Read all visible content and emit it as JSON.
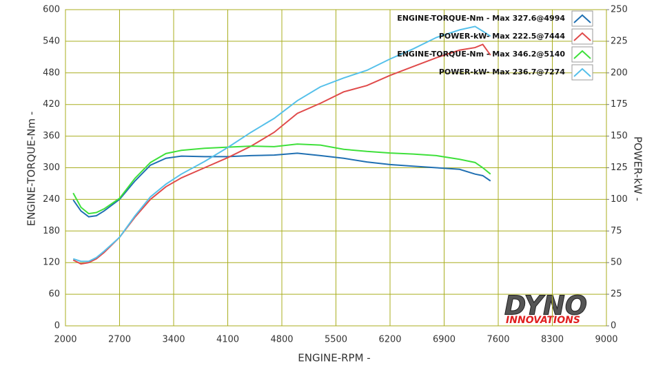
{
  "chart_data": {
    "type": "line",
    "xlabel": "ENGINE-RPM -",
    "ylabel": "ENGINE-TORQUE-Nm -",
    "y2label": "POWER-kW -",
    "x": [
      2100,
      2200,
      2300,
      2400,
      2500,
      2700,
      2900,
      3100,
      3300,
      3500,
      3800,
      4100,
      4400,
      4700,
      5000,
      5300,
      5600,
      5900,
      6200,
      6500,
      6800,
      7100,
      7300,
      7400,
      7500
    ],
    "series": [
      {
        "name": "ENGINE-TORQUE-Nm -  Max 327.6@4994",
        "color": "#1f6fb2",
        "axis": "y",
        "values": [
          239,
          218,
          207,
          209,
          218,
          240,
          275,
          305,
          318,
          322,
          321,
          321,
          323,
          324,
          327.6,
          323,
          318,
          311,
          306,
          303,
          300,
          297,
          288,
          285,
          275
        ]
      },
      {
        "name": "POWER-kW-  Max 222.5@7444",
        "color": "#e04a4a",
        "axis": "y2",
        "values": [
          52,
          49,
          50,
          53,
          58,
          70,
          86,
          100,
          110,
          117,
          125,
          133,
          142,
          153,
          168,
          176,
          185,
          190,
          198,
          205,
          212,
          218,
          220,
          222.5,
          214
        ]
      },
      {
        "name": "ENGINE-TORQUE-Nm -  Max 346.2@5140",
        "color": "#3ee03a",
        "axis": "y",
        "values": [
          252,
          225,
          213,
          215,
          222,
          242,
          280,
          310,
          327,
          333,
          337,
          339,
          341,
          340,
          345,
          343,
          335,
          331,
          328,
          326,
          323,
          316,
          310,
          300,
          288
        ]
      },
      {
        "name": "POWER-kW-  Max 236.7@7274",
        "color": "#55c0ea",
        "axis": "y2",
        "values": [
          53,
          51,
          51,
          54,
          59,
          70,
          87,
          102,
          112,
          120,
          130,
          141,
          153,
          164,
          178,
          189,
          196,
          202,
          211,
          219,
          228,
          234,
          236.7,
          233,
          229
        ]
      }
    ],
    "xlim": [
      2000,
      9000
    ],
    "xticks": [
      2000,
      2700,
      3400,
      4100,
      4800,
      5500,
      6200,
      6900,
      7600,
      8300,
      9000
    ],
    "ylim": [
      0,
      600
    ],
    "yticks": [
      0,
      60,
      120,
      180,
      240,
      300,
      360,
      420,
      480,
      540,
      600
    ],
    "y2lim": [
      0,
      250
    ],
    "y2ticks": [
      0,
      25,
      50,
      75,
      100,
      125,
      150,
      175,
      200,
      225,
      250
    ],
    "grid": true,
    "legend": "top-right"
  },
  "logo": {
    "line1": "DYNO",
    "line2": "INNOVATIONS"
  }
}
